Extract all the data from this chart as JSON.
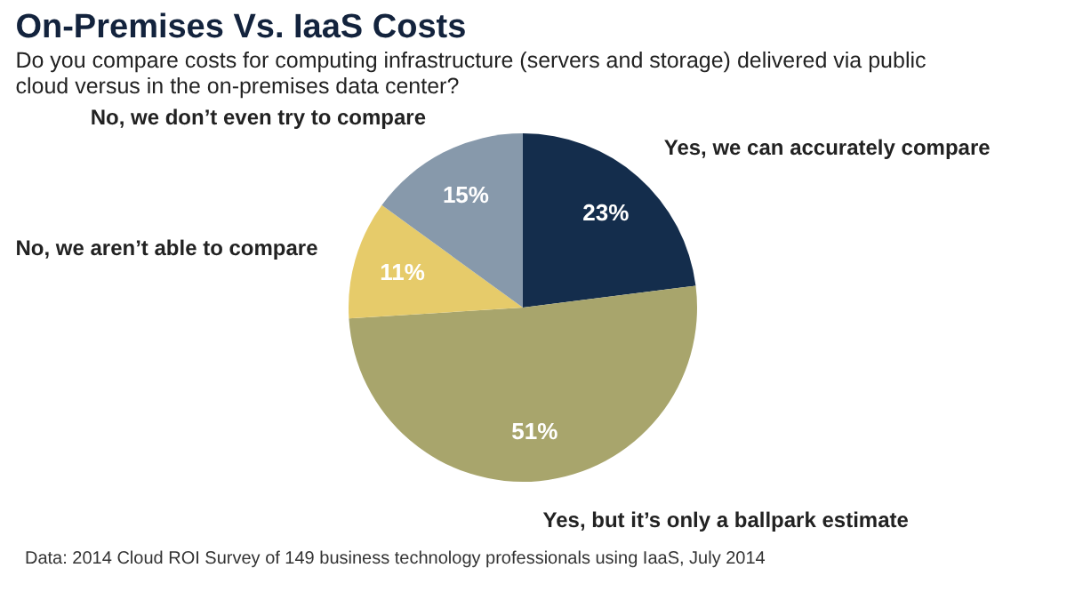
{
  "chart_data": {
    "type": "pie",
    "title": "On-Premises Vs. IaaS Costs",
    "subtitle": "Do you compare costs for computing infrastructure (servers and storage) delivered via public cloud versus in the on-premises data center?",
    "categories": [
      "Yes, we can accurately compare",
      "Yes, but it’s only a ballpark estimate",
      "No, we aren’t able to compare",
      "No, we don’t even try to compare"
    ],
    "values": [
      23,
      51,
      11,
      15
    ],
    "colors": [
      "#142d4c",
      "#a8a56c",
      "#e6cb6a",
      "#8799ab"
    ],
    "value_labels": [
      "23%",
      "51%",
      "11%",
      "15%"
    ],
    "annotations": [
      "Data: 2014 Cloud ROI Survey of 149 business technology professionals using IaaS, July 2014"
    ]
  }
}
